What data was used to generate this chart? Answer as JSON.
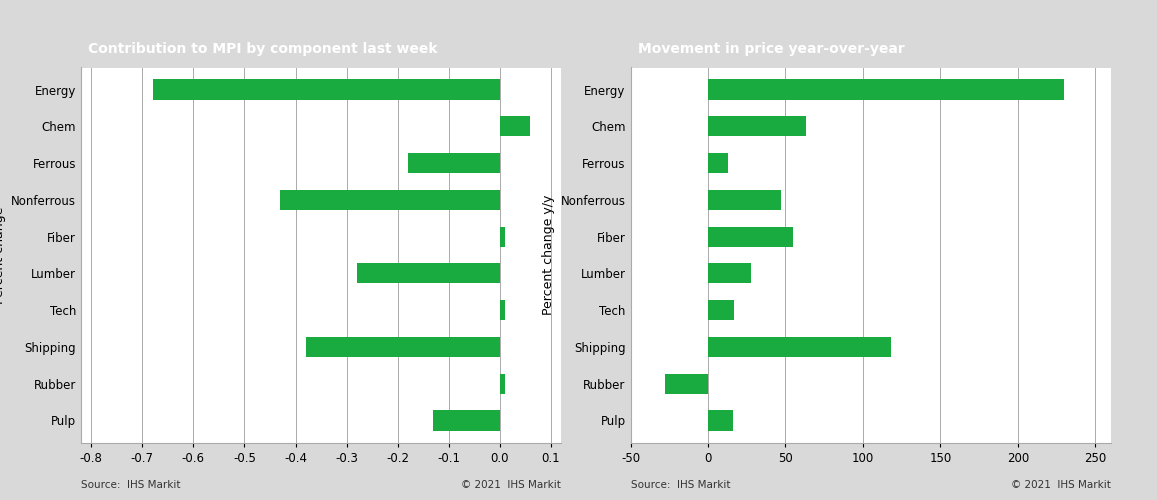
{
  "categories": [
    "Pulp",
    "Rubber",
    "Shipping",
    "Tech",
    "Lumber",
    "Fiber",
    "Nonferrous",
    "Ferrous",
    "Chem",
    "Energy"
  ],
  "left_values": [
    -0.13,
    0.01,
    -0.38,
    0.01,
    -0.28,
    0.01,
    -0.43,
    -0.18,
    0.06,
    -0.68
  ],
  "right_values": [
    16,
    -28,
    118,
    17,
    28,
    55,
    47,
    13,
    63,
    230
  ],
  "bar_color": "#1aab40",
  "left_title": "Contribution to MPI by component last week",
  "right_title": "Movement in price year-over-year",
  "left_ylabel": "Percent change",
  "right_ylabel": "Percent change y/y",
  "left_xlim": [
    -0.82,
    0.12
  ],
  "right_xlim": [
    -50,
    260
  ],
  "left_xticks": [
    -0.8,
    -0.7,
    -0.6,
    -0.5,
    -0.4,
    -0.3,
    -0.2,
    -0.1,
    0.0,
    0.1
  ],
  "right_xticks": [
    -50,
    0,
    50,
    100,
    150,
    200,
    250
  ],
  "left_xticklabels": [
    "-0.8",
    "-0.7",
    "-0.6",
    "-0.5",
    "-0.4",
    "-0.3",
    "-0.2",
    "-0.1",
    "0.0",
    "0.1"
  ],
  "right_xticklabels": [
    "-50",
    "0",
    "50",
    "100",
    "150",
    "200",
    "250"
  ],
  "title_bg_color": "#7f7f7f",
  "title_text_color": "#ffffff",
  "outer_bg_color": "#d9d9d9",
  "plot_bg_color": "#ffffff",
  "source_left": "Source:  IHS Markit",
  "source_right": "Source:  IHS Markit",
  "copyright_left": "© 2021  IHS Markit",
  "copyright_right": "© 2021  IHS Markit",
  "grid_color": "#aaaaaa",
  "spine_color": "#aaaaaa",
  "tick_label_fontsize": 8.5,
  "ylabel_fontsize": 9,
  "title_fontsize": 10,
  "bar_height": 0.55
}
